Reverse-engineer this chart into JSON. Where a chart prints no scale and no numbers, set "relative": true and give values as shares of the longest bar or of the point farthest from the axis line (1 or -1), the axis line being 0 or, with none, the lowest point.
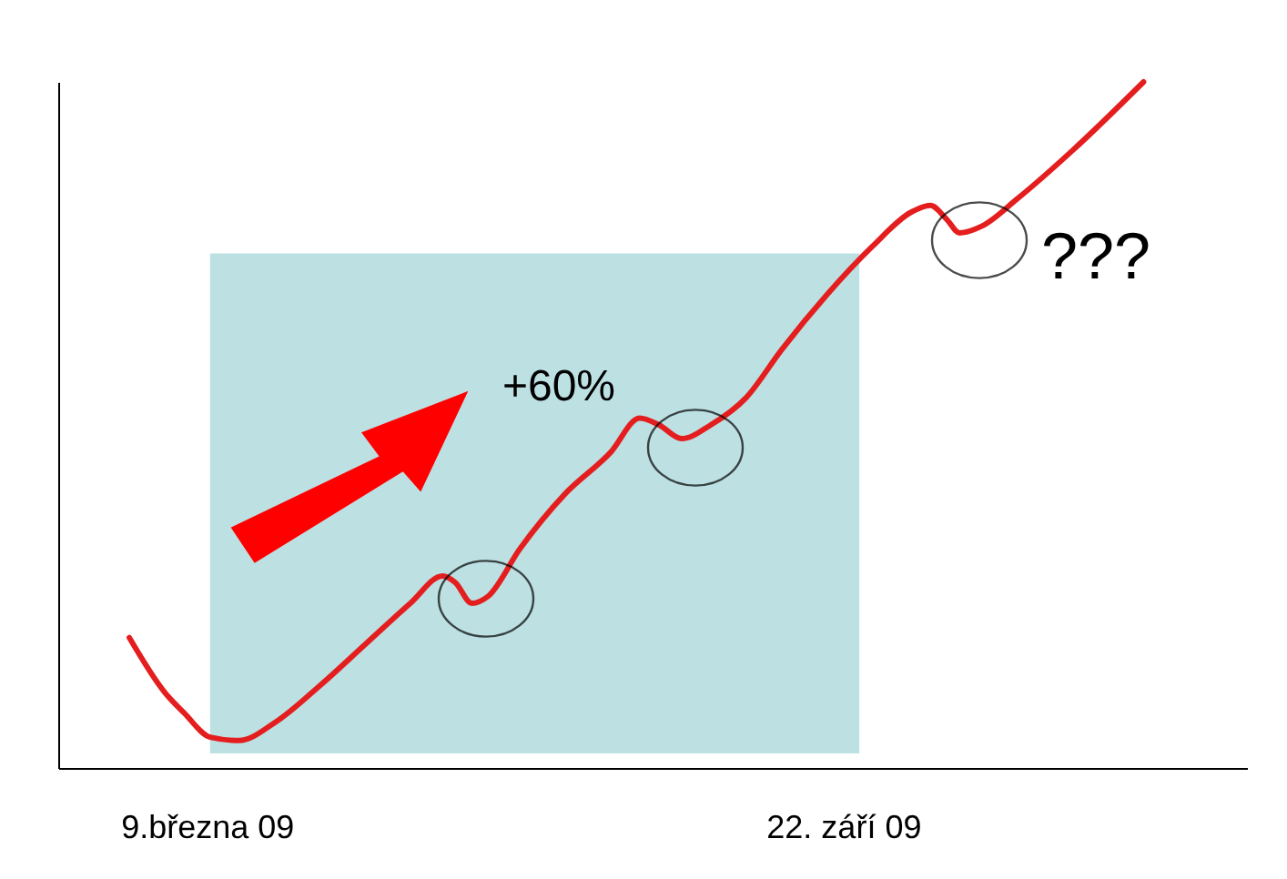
{
  "chart_data": {
    "type": "line",
    "relative": true,
    "x": [
      "2009-02-13",
      "2009-02-24",
      "2009-03-02",
      "2009-03-10",
      "2009-03-19",
      "2009-03-30",
      "2009-04-13",
      "2009-04-27",
      "2009-05-11",
      "2009-05-21",
      "2009-05-25",
      "2009-05-30",
      "2009-06-04",
      "2009-06-14",
      "2009-06-28",
      "2009-07-12",
      "2009-07-21",
      "2009-07-27",
      "2009-08-03",
      "2009-08-12",
      "2009-08-23",
      "2009-09-03",
      "2009-09-17",
      "2009-10-01",
      "2009-10-13",
      "2009-10-19",
      "2009-10-24",
      "2009-10-28",
      "2009-11-04",
      "2009-11-15",
      "2009-12-02",
      "2009-12-24"
    ],
    "series": [
      {
        "color": "#e41e1e",
        "values": [
          0.19,
          0.11,
          0.08,
          0.045,
          0.04,
          0.066,
          0.12,
          0.18,
          0.24,
          0.28,
          0.27,
          0.24,
          0.25,
          0.32,
          0.4,
          0.46,
          0.51,
          0.5,
          0.48,
          0.5,
          0.54,
          0.61,
          0.69,
          0.76,
          0.81,
          0.82,
          0.8,
          0.78,
          0.79,
          0.83,
          0.9,
          1
        ]
      }
    ],
    "xlim": [
      "2009-01-22",
      "2010-01-25"
    ],
    "xticks": [
      {
        "value": "2009-03-09",
        "label": "9.března 09"
      },
      {
        "value": "2009-09-22",
        "label": "22. září 09"
      }
    ],
    "bands": [
      {
        "axis": "x",
        "from": "2009-03-10",
        "to": "2009-09-27",
        "color": "#bde0e3"
      }
    ],
    "annotations": [
      "+60%",
      "???"
    ],
    "line_style": "solid"
  }
}
